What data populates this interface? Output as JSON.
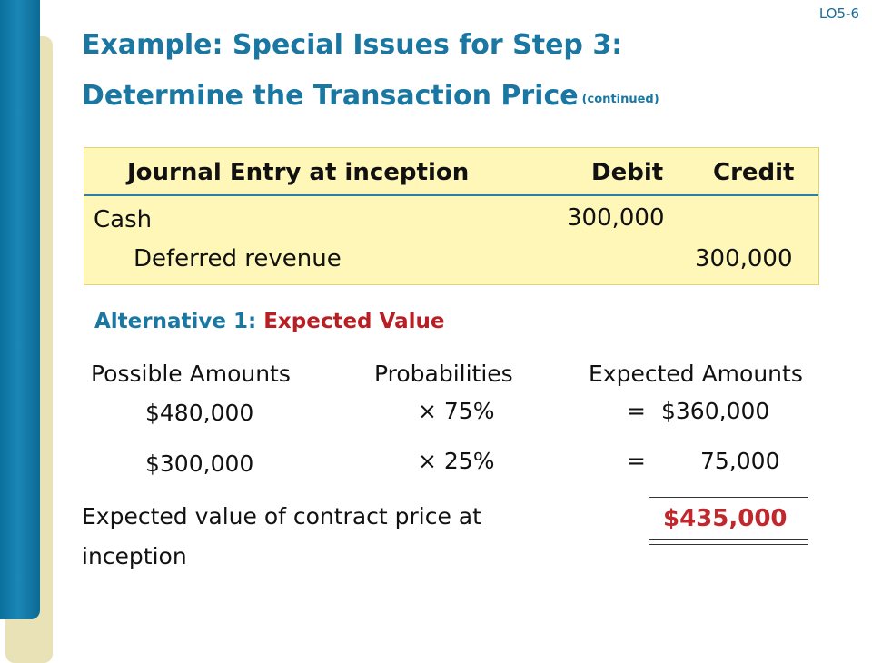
{
  "slide": {
    "lo_code": "LO5-6",
    "title_line1": "Example: Special Issues for Step 3:",
    "title_line2": "Determine the Transaction Price",
    "title_suffix": "(continued)"
  },
  "journal": {
    "header_label": "Journal Entry at inception",
    "debit_label": "Debit",
    "credit_label": "Credit",
    "rows": [
      {
        "account": "Cash",
        "debit": "300,000",
        "credit": ""
      },
      {
        "account": "Deferred revenue",
        "debit": "",
        "credit": "300,000"
      }
    ]
  },
  "alternative": {
    "prefix": "Alternative 1:",
    "name": "Expected Value"
  },
  "calc": {
    "headers": [
      "Possible Amounts",
      "Probabilities",
      "Expected Amounts"
    ],
    "rows": [
      {
        "amount": "$480,000",
        "prob": "× 75%",
        "eq": "=",
        "expected": "$360,000"
      },
      {
        "amount": "$300,000",
        "prob": "× 25%",
        "eq": "=",
        "expected": "75,000"
      }
    ],
    "total_label_line1": "Expected value of contract price at",
    "total_label_line2": "inception",
    "total_value": "$435,000"
  }
}
